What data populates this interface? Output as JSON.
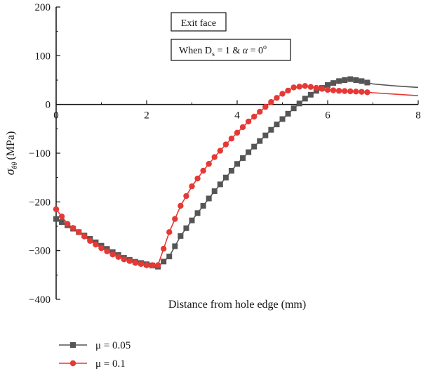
{
  "chart_data": {
    "type": "line",
    "title": "",
    "xlabel": "Distance from hole edge (mm)",
    "ylabel_symbol": "σ",
    "ylabel_subscript": "θθ",
    "ylabel_unit": "(MPa)",
    "xlim": [
      0,
      8
    ],
    "ylim": [
      -400,
      200
    ],
    "x_ticks": [
      0,
      2,
      4,
      6,
      8
    ],
    "y_ticks": [
      200,
      100,
      0,
      -100,
      -200,
      -300,
      -400
    ],
    "grid": false,
    "legend_position": "bottom-left",
    "annotations": {
      "box1": "Exit face",
      "box2": {
        "prefix": "When D",
        "subscript": "s",
        "middle": " = 1 & ",
        "alpha": "α",
        "equals": " = 0",
        "degree": "o"
      }
    },
    "series": [
      {
        "name": "μ = 0.05",
        "color": "#555555",
        "marker": "square",
        "x": [
          0.0,
          0.25,
          0.5,
          0.75,
          1.0,
          1.25,
          1.5,
          1.75,
          2.0,
          2.25,
          2.5,
          2.75,
          3.0,
          3.25,
          3.5,
          3.75,
          4.0,
          4.25,
          4.5,
          4.75,
          5.0,
          5.25,
          5.5,
          5.75,
          6.0,
          6.25,
          6.5,
          6.75,
          7.0,
          7.5,
          8.0
        ],
        "y": [
          -235,
          -248,
          -262,
          -276,
          -290,
          -303,
          -315,
          -323,
          -328,
          -333,
          -312,
          -270,
          -238,
          -208,
          -178,
          -150,
          -122,
          -98,
          -75,
          -52,
          -30,
          -8,
          12,
          28,
          40,
          48,
          52,
          48,
          42,
          38,
          35
        ]
      },
      {
        "name": "μ = 0.1",
        "color": "#e53935",
        "marker": "circle",
        "x": [
          0.0,
          0.25,
          0.5,
          0.75,
          1.0,
          1.25,
          1.5,
          1.75,
          2.0,
          2.25,
          2.5,
          2.75,
          3.0,
          3.25,
          3.5,
          3.75,
          4.0,
          4.25,
          4.5,
          4.75,
          5.0,
          5.25,
          5.5,
          5.75,
          6.0,
          6.25,
          6.5,
          6.75,
          7.0,
          7.5,
          8.0
        ],
        "y": [
          -215,
          -245,
          -262,
          -280,
          -295,
          -308,
          -318,
          -325,
          -330,
          -330,
          -262,
          -208,
          -168,
          -136,
          -108,
          -82,
          -58,
          -35,
          -15,
          5,
          22,
          35,
          38,
          34,
          30,
          28,
          27,
          26,
          24,
          21,
          18
        ]
      }
    ]
  }
}
